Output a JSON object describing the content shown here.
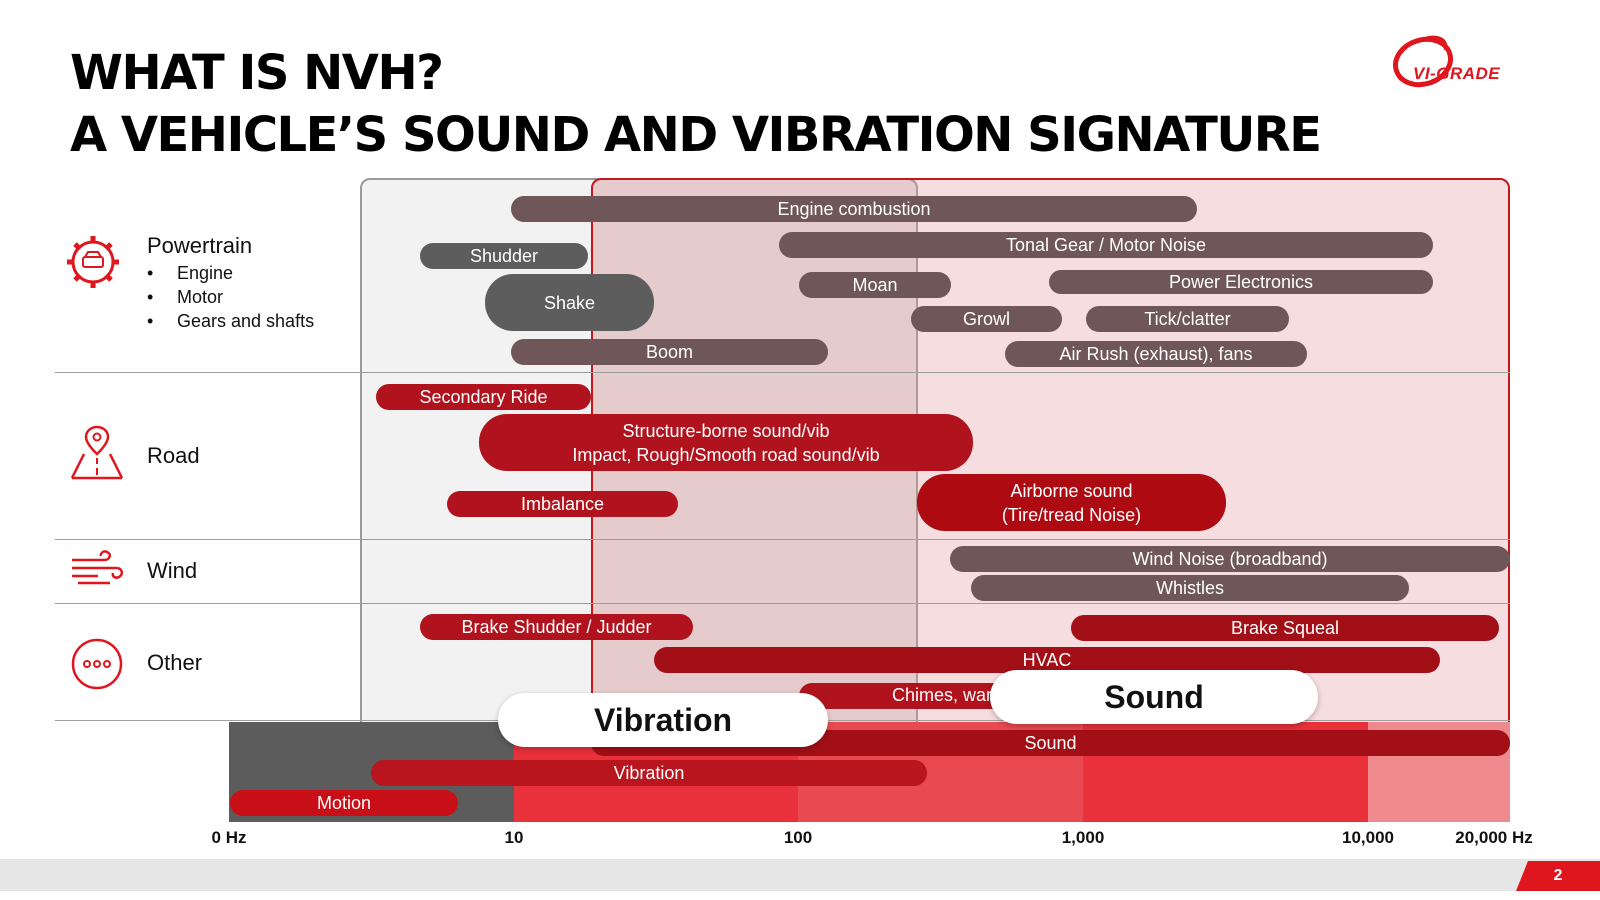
{
  "title": {
    "line1": "WHAT IS NVH?",
    "line2": "A VEHICLE’S SOUND AND VIBRATION SIGNATURE"
  },
  "logo": {
    "text": "VI-GRADE",
    "color": "#e0161e"
  },
  "categories": [
    {
      "label": "Powertrain",
      "icon": "gear-car-icon",
      "items": [
        "Engine",
        "Motor",
        "Gears and shafts"
      ]
    },
    {
      "label": "Road",
      "icon": "road-pin-icon"
    },
    {
      "label": "Wind",
      "icon": "wind-icon"
    },
    {
      "label": "Other",
      "icon": "more-dots-icon"
    }
  ],
  "bars": {
    "powertrain": {
      "engine_combustion": "Engine combustion",
      "shudder": "Shudder",
      "tonal_gear": "Tonal Gear / Motor Noise",
      "moan": "Moan",
      "power_electronics": "Power Electronics",
      "shake": "Shake",
      "growl": "Growl",
      "tick_clatter": "Tick/clatter",
      "boom": "Boom",
      "air_rush": "Air Rush (exhaust), fans"
    },
    "road": {
      "secondary_ride": "Secondary Ride",
      "structure_line1": "Structure-borne sound/vib",
      "structure_line2": "Impact, Rough/Smooth road sound/vib",
      "imbalance": "Imbalance",
      "airborne_line1": "Airborne sound",
      "airborne_line2": "(Tire/tread Noise)"
    },
    "wind": {
      "wind_noise": "Wind Noise (broadband)",
      "whistles": "Whistles"
    },
    "other": {
      "brake_shudder": "Brake Shudder / Judder",
      "brake_squeal": "Brake Squeal",
      "hvac": "HVAC",
      "chimes": "Chimes, warni"
    },
    "spectrum": {
      "sound": "Sound",
      "vibration": "Vibration",
      "motion": "Motion"
    }
  },
  "zones": {
    "vibration_label": "Vibration",
    "sound_label": "Sound"
  },
  "axis": {
    "ticks": [
      "0 Hz",
      "10",
      "100",
      "1,000",
      "10,000",
      "20,000 Hz"
    ]
  },
  "page_number": "2",
  "colors": {
    "accent": "#e0161e",
    "grey_bar": "#6f5658",
    "red_bar": "#b0131d",
    "sound_zone": "#f3dcdd",
    "vibration_zone": "#f2f2f2"
  }
}
